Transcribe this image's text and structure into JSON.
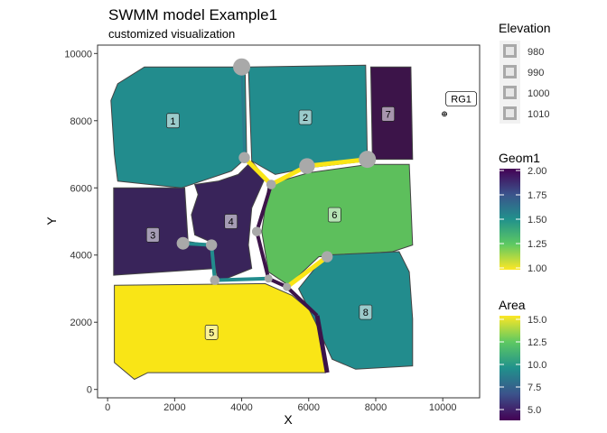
{
  "chart_data": {
    "type": "map",
    "title": "SWMM model Example1",
    "subtitle": "customized visualization",
    "xlabel": "X",
    "ylabel": "Y",
    "xlim": [
      -300,
      11100
    ],
    "ylim": [
      -250,
      10250
    ],
    "x_ticks": [
      0,
      2000,
      4000,
      6000,
      8000,
      10000
    ],
    "y_ticks": [
      0,
      2000,
      4000,
      6000,
      8000,
      10000
    ],
    "colors": {
      "panel_border": "#333333",
      "subcatchment_border": "#444444",
      "node_fill": "#a9a9a9",
      "raingage_label_border": "#000000"
    },
    "subcatchments": [
      {
        "label": "1",
        "geom1": 1.5,
        "fill": "#228c8d",
        "polygon": [
          [
            1100,
            9600
          ],
          [
            4100,
            9600
          ],
          [
            4150,
            6900
          ],
          [
            3700,
            6500
          ],
          [
            2200,
            6000
          ],
          [
            300,
            6200
          ],
          [
            200,
            7000
          ],
          [
            100,
            8600
          ],
          [
            300,
            9100
          ]
        ],
        "label_pos": [
          1950,
          8000
        ]
      },
      {
        "label": "2",
        "geom1": 1.5,
        "fill": "#228c8d",
        "polygon": [
          [
            4200,
            9600
          ],
          [
            7700,
            9650
          ],
          [
            7750,
            6800
          ],
          [
            6000,
            6600
          ],
          [
            5000,
            6400
          ],
          [
            4300,
            6800
          ]
        ],
        "label_pos": [
          5900,
          8100
        ]
      },
      {
        "label": "3",
        "geom1": 2.0,
        "fill": "#39245a",
        "polygon": [
          [
            180,
            6000
          ],
          [
            2300,
            6000
          ],
          [
            2400,
            4400
          ],
          [
            3100,
            4300
          ],
          [
            3250,
            3600
          ],
          [
            180,
            3400
          ]
        ],
        "label_pos": [
          1350,
          4600
        ]
      },
      {
        "label": "4",
        "geom1": 2.0,
        "fill": "#39245a",
        "polygon": [
          [
            2600,
            6100
          ],
          [
            3300,
            6200
          ],
          [
            3900,
            6400
          ],
          [
            4300,
            6800
          ],
          [
            4700,
            6300
          ],
          [
            4300,
            5400
          ],
          [
            4200,
            4300
          ],
          [
            4300,
            3600
          ],
          [
            3300,
            3200
          ],
          [
            3050,
            4400
          ],
          [
            2600,
            4600
          ],
          [
            2500,
            5200
          ],
          [
            2700,
            5800
          ]
        ],
        "label_pos": [
          3680,
          5000
        ]
      },
      {
        "label": "5",
        "geom1": 1.0,
        "fill": "#f9e516",
        "polygon": [
          [
            200,
            3100
          ],
          [
            4700,
            3150
          ],
          [
            5500,
            2800
          ],
          [
            6100,
            2300
          ],
          [
            6450,
            1500
          ],
          [
            6500,
            500
          ],
          [
            1200,
            500
          ],
          [
            800,
            300
          ],
          [
            200,
            800
          ]
        ],
        "label_pos": [
          3100,
          1700
        ]
      },
      {
        "label": "6",
        "geom1": 1.25,
        "fill": "#5dbf5c",
        "polygon": [
          [
            4800,
            6100
          ],
          [
            6000,
            6450
          ],
          [
            7800,
            6700
          ],
          [
            9000,
            6700
          ],
          [
            9100,
            4300
          ],
          [
            8500,
            4100
          ],
          [
            6300,
            3950
          ],
          [
            5400,
            3100
          ],
          [
            4800,
            3500
          ],
          [
            4600,
            4700
          ]
        ],
        "label_pos": [
          6770,
          5200
        ]
      },
      {
        "label": "7",
        "geom1": 2.0,
        "fill": "#3c1449",
        "polygon": [
          [
            7850,
            9600
          ],
          [
            9050,
            9600
          ],
          [
            9100,
            6850
          ],
          [
            7900,
            6850
          ]
        ],
        "label_pos": [
          8370,
          8200
        ]
      },
      {
        "label": "8",
        "geom1": 1.5,
        "fill": "#228c8d",
        "polygon": [
          [
            5700,
            3000
          ],
          [
            6500,
            4000
          ],
          [
            8700,
            4100
          ],
          [
            9000,
            3500
          ],
          [
            9100,
            2100
          ],
          [
            9100,
            700
          ],
          [
            7400,
            600
          ],
          [
            6700,
            900
          ],
          [
            6200,
            2000
          ]
        ],
        "label_pos": [
          7700,
          2300
        ]
      }
    ],
    "links": [
      {
        "from": [
          4000,
          9600
        ],
        "to": [
          4080,
          6900
        ],
        "area": 8.0,
        "color": "#2a7b8e",
        "width": 2.5
      },
      {
        "from": [
          4080,
          6900
        ],
        "to": [
          4880,
          6100
        ],
        "area": 15.0,
        "color": "#f9e516",
        "width": 5
      },
      {
        "from": [
          4880,
          6100
        ],
        "to": [
          5950,
          6650
        ],
        "area": 15.0,
        "color": "#f9e516",
        "width": 5
      },
      {
        "from": [
          5950,
          6650
        ],
        "to": [
          7750,
          6850
        ],
        "area": 15.0,
        "color": "#f9e516",
        "width": 5
      },
      {
        "from": [
          4880,
          6100
        ],
        "to": [
          4450,
          4700
        ],
        "area": 4.5,
        "color": "#3c1449",
        "width": 4
      },
      {
        "from": [
          4450,
          4700
        ],
        "to": [
          4800,
          3300
        ],
        "area": 4.5,
        "color": "#3c1449",
        "width": 4
      },
      {
        "from": [
          2250,
          4350
        ],
        "to": [
          3100,
          4300
        ],
        "area": 10.0,
        "color": "#228c8d",
        "width": 4
      },
      {
        "from": [
          3100,
          4300
        ],
        "to": [
          3200,
          3250
        ],
        "area": 10.0,
        "color": "#228c8d",
        "width": 4
      },
      {
        "from": [
          3200,
          3250
        ],
        "to": [
          4800,
          3300
        ],
        "area": 10.0,
        "color": "#228c8d",
        "width": 4
      },
      {
        "from": [
          4800,
          3300
        ],
        "to": [
          5350,
          3050
        ],
        "area": 4.5,
        "color": "#3c1449",
        "width": 4
      },
      {
        "from": [
          5350,
          3050
        ],
        "to": [
          6550,
          3950
        ],
        "area": 15.0,
        "color": "#f9e516",
        "width": 5
      },
      {
        "from": [
          5350,
          3050
        ],
        "to": [
          6250,
          2200
        ],
        "area": 4.5,
        "color": "#3c1449",
        "width": 4
      },
      {
        "from": [
          6250,
          2200
        ],
        "to": [
          6550,
          500
        ],
        "area": 4.5,
        "color": "#3c1449",
        "width": 5
      }
    ],
    "nodes": [
      {
        "x": 4000,
        "y": 9600,
        "elevation": 1010
      },
      {
        "x": 4080,
        "y": 6900,
        "elevation": 990
      },
      {
        "x": 4880,
        "y": 6100,
        "elevation": 985
      },
      {
        "x": 5950,
        "y": 6650,
        "elevation": 1005
      },
      {
        "x": 7750,
        "y": 6850,
        "elevation": 1010
      },
      {
        "x": 4450,
        "y": 4700,
        "elevation": 985
      },
      {
        "x": 2250,
        "y": 4350,
        "elevation": 995
      },
      {
        "x": 3100,
        "y": 4300,
        "elevation": 990
      },
      {
        "x": 3200,
        "y": 3250,
        "elevation": 985
      },
      {
        "x": 4800,
        "y": 3300,
        "elevation": 980
      },
      {
        "x": 5350,
        "y": 3050,
        "elevation": 980
      },
      {
        "x": 6550,
        "y": 3950,
        "elevation": 990
      }
    ],
    "raingage": {
      "label": "RG1",
      "x": 10050,
      "y": 8200,
      "label_pos": [
        10550,
        8650
      ]
    },
    "legends": {
      "elevation": {
        "title": "Elevation",
        "items": [
          "980",
          "990",
          "1000",
          "1010"
        ]
      },
      "geom1": {
        "title": "Geom1",
        "labels": [
          "2.00",
          "1.75",
          "1.50",
          "1.25",
          "1.00"
        ]
      },
      "area": {
        "title": "Area",
        "labels": [
          "15.0",
          "12.5",
          "10.0",
          "7.5",
          "5.0"
        ]
      }
    }
  }
}
